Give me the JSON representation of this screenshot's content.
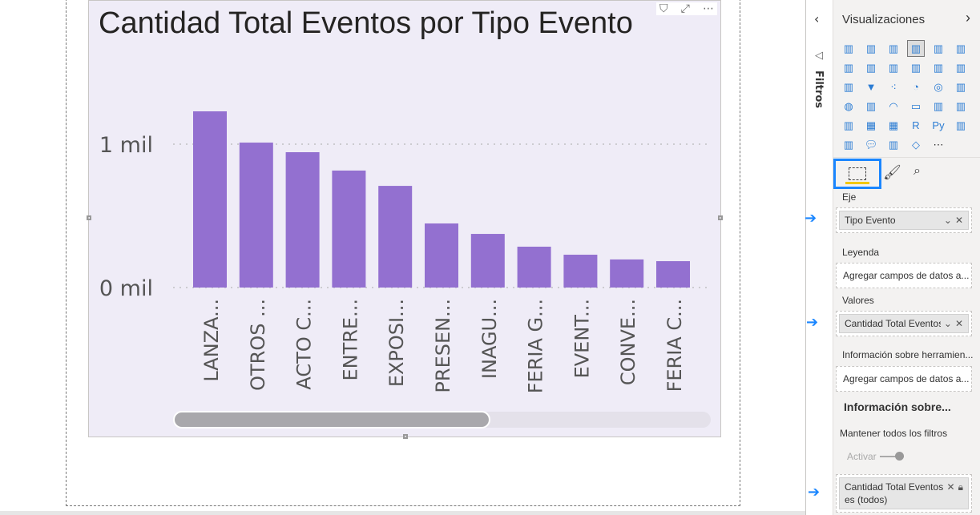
{
  "visual": {
    "title": "Cantidad Total Eventos por Tipo Evento",
    "icons": [
      "filter-icon",
      "focus-mode-icon",
      "more-options-icon"
    ]
  },
  "chart_data": {
    "type": "bar",
    "title": "Cantidad Total Eventos por Tipo Evento",
    "categories": [
      "LANZA...",
      "OTROS ...",
      "ACTO C...",
      "ENTRE...",
      "EXPOSI...",
      "PRESEN...",
      "INAGU...",
      "FERIA G...",
      "EVENT...",
      "CONVE...",
      "FERIA C..."
    ],
    "values": [
      1229,
      1011,
      944,
      816,
      709,
      447,
      374,
      285,
      229,
      196,
      184
    ],
    "yticks": [
      "0 mil",
      "1 mil"
    ],
    "ytick_values": [
      0,
      1000
    ],
    "ylim": [
      0,
      1250
    ],
    "grid": true,
    "bar_color": "#9370d0",
    "xlabel": "",
    "ylabel": "",
    "scrollbar_position": 0.6
  },
  "filters": {
    "label": "Filtros"
  },
  "pane": {
    "title": "Visualizaciones",
    "axis_label": "Eje",
    "axis_field": "Tipo Evento",
    "legend_label": "Leyenda",
    "legend_placeholder": "Agregar campos de datos a...",
    "values_label": "Valores",
    "values_field": "Cantidad Total Eventos",
    "tooltip_label": "Información sobre herramien...",
    "tooltip_placeholder": "Agregar campos de datos a...",
    "drill_heading": "Información sobre...",
    "keep_filters": "Mantener todos los filtros",
    "toggle_label": "Activar",
    "toggle_on": false,
    "filter_card_line1": "Cantidad Total Eventos",
    "filter_card_line2": "es (todos)",
    "accent": "#1a86ff"
  }
}
